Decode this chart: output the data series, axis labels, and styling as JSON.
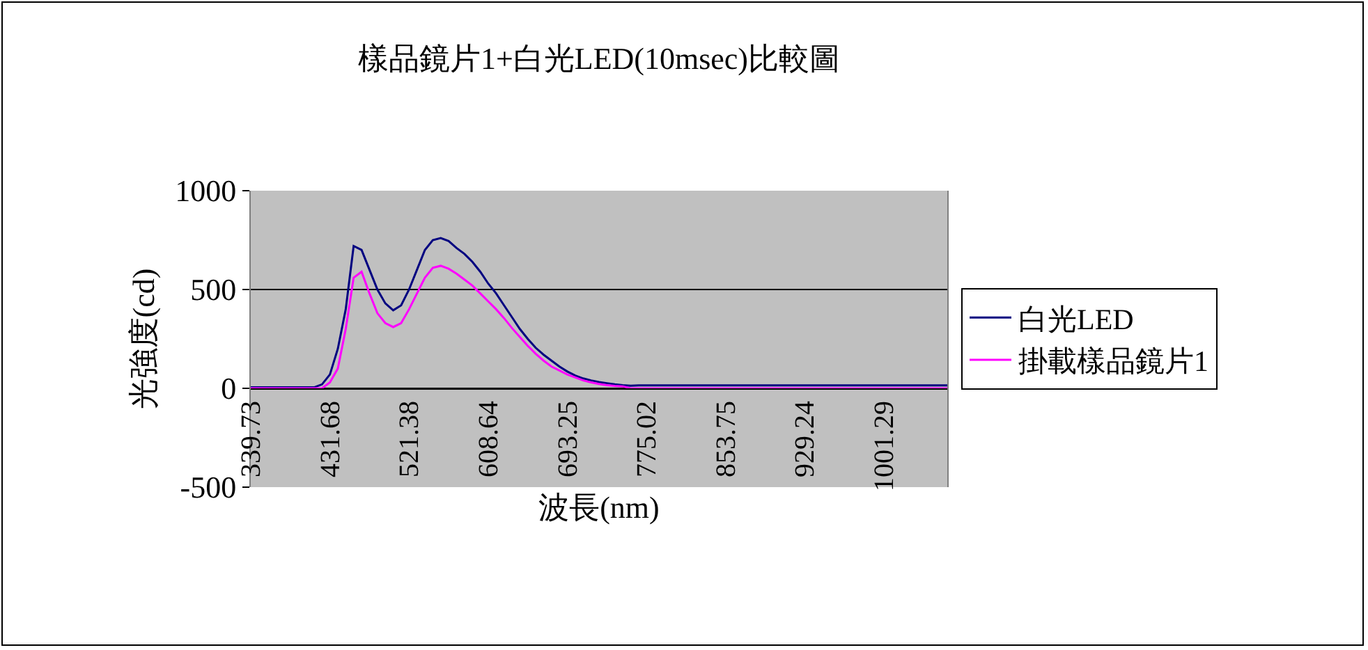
{
  "chart_data": {
    "type": "line",
    "title": "樣品鏡片1+白光LED(10msec)比較圖",
    "xlabel": "波長(nm)",
    "ylabel": "光強度(cd)",
    "categories": [
      "339.73",
      null,
      null,
      null,
      null,
      null,
      null,
      null,
      null,
      null,
      "431.68",
      null,
      null,
      null,
      null,
      null,
      null,
      null,
      null,
      null,
      "521.38",
      null,
      null,
      null,
      null,
      null,
      null,
      null,
      null,
      null,
      "608.64",
      null,
      null,
      null,
      null,
      null,
      null,
      null,
      null,
      null,
      "693.25",
      null,
      null,
      null,
      null,
      null,
      null,
      null,
      null,
      null,
      "775.02",
      null,
      null,
      null,
      null,
      null,
      null,
      null,
      null,
      null,
      "853.75",
      null,
      null,
      null,
      null,
      null,
      null,
      null,
      null,
      null,
      "929.24",
      null,
      null,
      null,
      null,
      null,
      null,
      null,
      null,
      null,
      "1001.29",
      null,
      null,
      null,
      null,
      null,
      null,
      null,
      null
    ],
    "series": [
      {
        "name": "白光LED",
        "color": "#000080",
        "values": [
          5,
          5,
          5,
          5,
          5,
          5,
          5,
          5,
          5,
          20,
          70,
          200,
          400,
          720,
          700,
          600,
          500,
          430,
          395,
          420,
          500,
          600,
          700,
          750,
          760,
          745,
          710,
          680,
          640,
          590,
          530,
          480,
          420,
          360,
          300,
          250,
          205,
          170,
          140,
          110,
          85,
          65,
          50,
          40,
          32,
          26,
          20,
          16,
          13,
          15,
          15,
          15,
          15,
          15,
          15,
          15,
          15,
          15,
          15,
          15,
          15,
          15,
          15,
          15,
          15,
          15,
          15,
          15,
          15,
          15,
          15,
          15,
          15,
          15,
          15,
          15,
          15,
          15,
          15,
          15,
          15,
          15,
          15,
          15,
          15,
          15,
          15,
          15,
          15
        ]
      },
      {
        "name": "掛載樣品鏡片1",
        "color": "#ff00ff",
        "values": [
          0,
          0,
          0,
          0,
          0,
          0,
          0,
          0,
          0,
          0,
          30,
          100,
          300,
          560,
          590,
          480,
          380,
          330,
          310,
          330,
          400,
          480,
          560,
          610,
          620,
          605,
          580,
          550,
          520,
          480,
          440,
          400,
          355,
          305,
          260,
          215,
          175,
          140,
          110,
          90,
          70,
          55,
          40,
          30,
          22,
          16,
          12,
          10,
          0,
          0,
          0,
          0,
          0,
          0,
          0,
          0,
          0,
          0,
          0,
          0,
          0,
          0,
          0,
          0,
          0,
          0,
          0,
          0,
          0,
          0,
          0,
          0,
          0,
          0,
          0,
          0,
          0,
          0,
          0,
          0,
          0,
          0,
          0,
          0,
          0,
          0,
          0,
          0,
          0
        ]
      }
    ],
    "ylim": [
      -500,
      1000
    ],
    "yticks": [
      -500,
      0,
      500,
      1000
    ],
    "grid": "y",
    "legend": "right"
  }
}
